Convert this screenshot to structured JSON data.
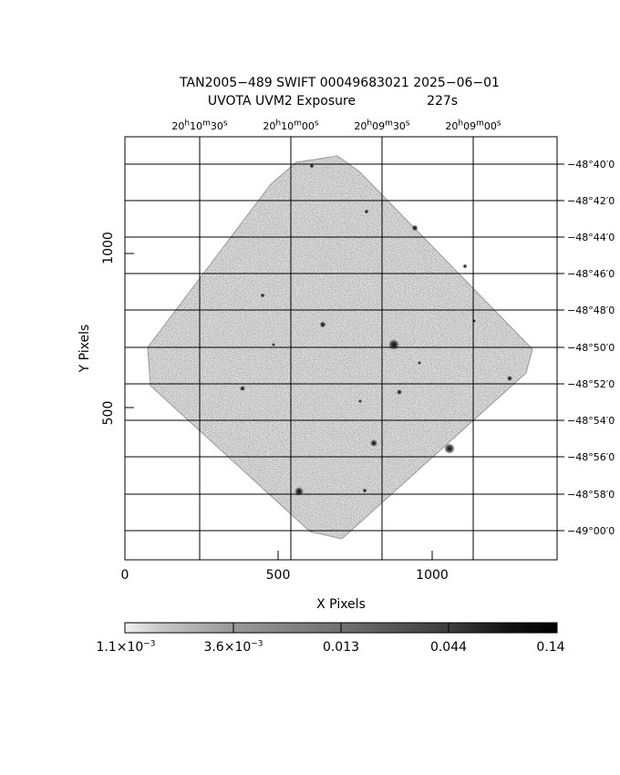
{
  "title": {
    "line1": "TAN2005−489 SWIFT 00049683021 2025−06−01",
    "line2_left": "UVOTA UVM2 Exposure",
    "line2_right": "227s"
  },
  "axes": {
    "xlabel": "X Pixels",
    "ylabel": "Y Pixels",
    "x_ticks": [
      "0",
      "500",
      "1000"
    ],
    "y_ticks": [
      "500",
      "1000"
    ]
  },
  "ra_ticks": [
    {
      "h": "20",
      "m": "10",
      "s": "30"
    },
    {
      "h": "20",
      "m": "10",
      "s": "00"
    },
    {
      "h": "20",
      "m": "09",
      "s": "30"
    },
    {
      "h": "20",
      "m": "09",
      "s": "00"
    }
  ],
  "dec_ticks": [
    "−48°40′0",
    "−48°42′0",
    "−48°44′0",
    "−48°46′0",
    "−48°48′0",
    "−48°50′0",
    "−48°52′0",
    "−48°54′0",
    "−48°56′0",
    "−48°58′0",
    "−49°00′0"
  ],
  "colorbar": {
    "labels": [
      {
        "mant": "1.1×10",
        "exp": "−3"
      },
      {
        "mant": "3.6×10",
        "exp": "−3"
      },
      {
        "mant": "0.013",
        "exp": ""
      },
      {
        "mant": "0.044",
        "exp": ""
      },
      {
        "mant": "0.14",
        "exp": ""
      }
    ]
  },
  "colors": {
    "frame": "#000000",
    "noise": "#7a7a7a"
  }
}
